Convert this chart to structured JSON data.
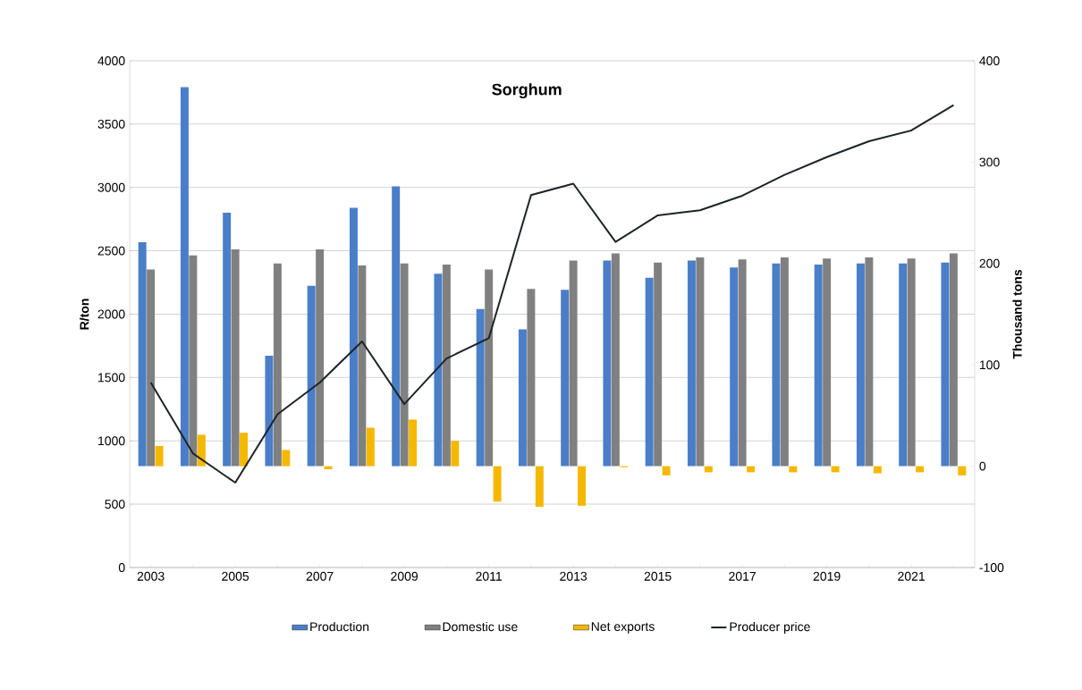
{
  "chart_data": {
    "type": "bar",
    "title": "Sorghum",
    "ylabel": "R/ton",
    "y2label": "Thousand tons",
    "categories": [
      "2003",
      null,
      "2005",
      null,
      "2007",
      null,
      "2009",
      null,
      "2011",
      null,
      "2013",
      null,
      "2015",
      null,
      "2017",
      null,
      "2019",
      null,
      "2021",
      null
    ],
    "series": [
      {
        "name": "Production",
        "color": "#4a7ec8",
        "axis": "y2",
        "values": [
          221,
          374,
          250,
          109,
          178,
          255,
          276,
          190,
          155,
          135,
          174,
          203,
          186,
          203,
          196,
          200,
          199,
          200,
          200,
          201
        ]
      },
      {
        "name": "Domestic use",
        "color": "#808080",
        "axis": "y2",
        "values": [
          194,
          208,
          214,
          200,
          214,
          198,
          200,
          199,
          194,
          175,
          203,
          210,
          201,
          206,
          204,
          206,
          205,
          206,
          205,
          210
        ]
      },
      {
        "name": "Net exports",
        "color": "#f5b800",
        "axis": "y2",
        "values": [
          20,
          31,
          33,
          16,
          -3,
          38,
          46,
          25,
          -35,
          -40,
          -39,
          -1,
          -9,
          -6,
          -6,
          -6,
          -6,
          -7,
          -6,
          -9
        ]
      },
      {
        "name": "Producer price",
        "color": "#1e2326",
        "type": "line",
        "axis": "y",
        "values": [
          1460,
          900,
          670,
          1210,
          1460,
          1785,
          1290,
          1650,
          1810,
          2940,
          3030,
          2570,
          2780,
          2820,
          2935,
          3100,
          3240,
          3365,
          3450,
          3650
        ]
      }
    ],
    "ylim": [
      0,
      4000
    ],
    "yticks": [
      0,
      500,
      1000,
      1500,
      2000,
      2500,
      3000,
      3500,
      4000
    ],
    "y2lim": [
      -100,
      400
    ],
    "y2ticks": [
      -100,
      0,
      100,
      200,
      300,
      400
    ],
    "grid": "y",
    "legend": "bottom"
  }
}
